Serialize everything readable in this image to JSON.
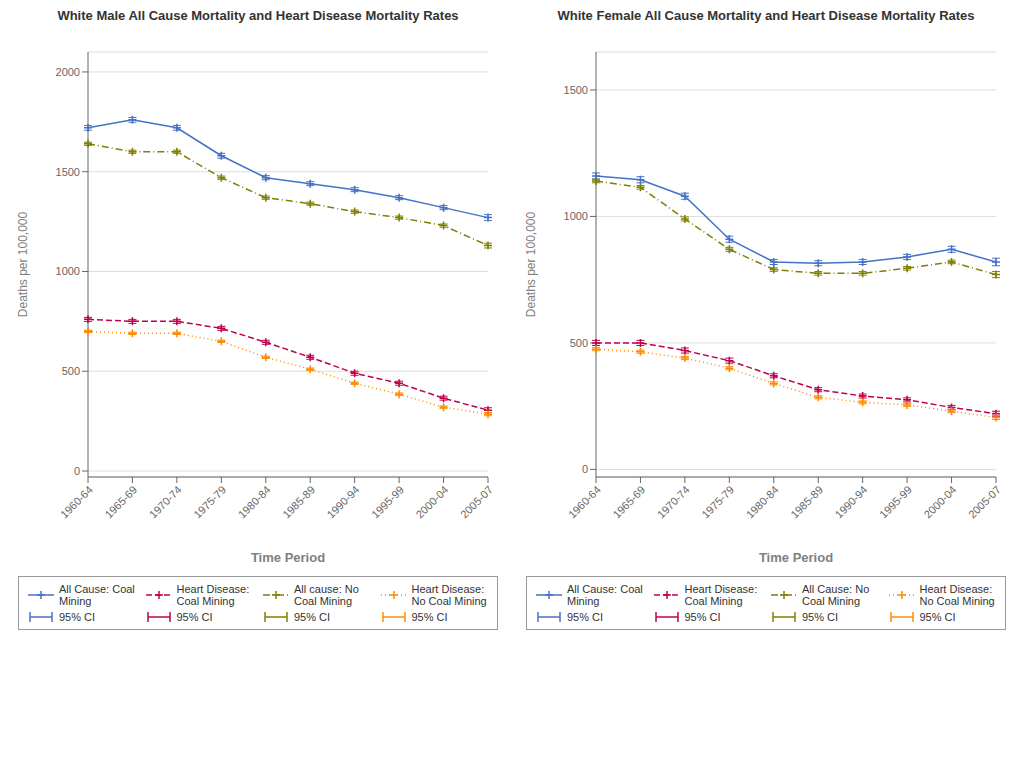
{
  "chart_data": [
    {
      "type": "line",
      "title": "White Male All Cause Mortality and Heart Disease Mortality Rates",
      "xlabel": "Time Period",
      "ylabel": "Deaths per 100,000",
      "categories": [
        "1960-64",
        "1965-69",
        "1970-74",
        "1975-79",
        "1980-84",
        "1985-89",
        "1990-94",
        "1995-99",
        "2000-04",
        "2005-07"
      ],
      "ylim": [
        -30,
        2100
      ],
      "yticks": [
        0,
        500,
        1000,
        1500,
        2000
      ],
      "grid": true,
      "legend": "bottom",
      "series": [
        {
          "name": "All Cause: Coal Mining",
          "color": "#4472c4",
          "line_style": "solid",
          "marker": "plus",
          "values": [
            1720,
            1760,
            1720,
            1580,
            1470,
            1440,
            1410,
            1370,
            1320,
            1270
          ],
          "errors": [
            12,
            12,
            12,
            12,
            10,
            10,
            10,
            10,
            10,
            15
          ],
          "error_label": "95% CI"
        },
        {
          "name": "Heart Disease: Coal Mining",
          "color": "#c0004e",
          "line_style": "dashed",
          "marker": "plus",
          "values": [
            760,
            750,
            750,
            715,
            645,
            570,
            490,
            440,
            365,
            305
          ],
          "errors": [
            10,
            10,
            10,
            10,
            10,
            10,
            10,
            10,
            10,
            12
          ],
          "error_label": "95% CI"
        },
        {
          "name": "All cause: No Coal Mining",
          "color": "#7f7f00",
          "line_style": "dashdot",
          "marker": "plus",
          "values": [
            1640,
            1600,
            1600,
            1470,
            1370,
            1340,
            1300,
            1270,
            1230,
            1130
          ],
          "errors": [
            8,
            8,
            8,
            8,
            8,
            8,
            8,
            8,
            8,
            12
          ],
          "error_label": "95% CI"
        },
        {
          "name": "Heart Disease: No Coal Mining",
          "color": "#ff8c00",
          "line_style": "dotted",
          "marker": "plus",
          "values": [
            700,
            690,
            690,
            650,
            570,
            510,
            440,
            385,
            320,
            285
          ],
          "errors": [
            6,
            6,
            6,
            6,
            6,
            6,
            6,
            6,
            6,
            8
          ],
          "error_label": "95% CI"
        }
      ]
    },
    {
      "type": "line",
      "title": "White Female All Cause Mortality and Heart Disease Mortality Rates",
      "xlabel": "Time Period",
      "ylabel": "Deaths per 100,000",
      "categories": [
        "1960-64",
        "1965-69",
        "1970-74",
        "1975-79",
        "1980-84",
        "1985-89",
        "1990-94",
        "1995-99",
        "2000-04",
        "2005-07"
      ],
      "ylim": [
        -30,
        1650
      ],
      "yticks": [
        0,
        500,
        1000,
        1500
      ],
      "grid": true,
      "legend": "bottom",
      "series": [
        {
          "name": "All Cause: Coal Mining",
          "color": "#4472c4",
          "line_style": "solid",
          "marker": "plus",
          "values": [
            1160,
            1145,
            1080,
            910,
            820,
            815,
            820,
            840,
            870,
            820
          ],
          "errors": [
            12,
            12,
            12,
            12,
            10,
            10,
            10,
            10,
            12,
            15
          ],
          "error_label": "95% CI"
        },
        {
          "name": "Heart Disease: Coal Mining",
          "color": "#c0004e",
          "line_style": "dashed",
          "marker": "plus",
          "values": [
            500,
            500,
            470,
            430,
            370,
            315,
            290,
            275,
            245,
            220
          ],
          "errors": [
            10,
            10,
            10,
            10,
            8,
            8,
            8,
            8,
            8,
            10
          ],
          "error_label": "95% CI"
        },
        {
          "name": "All Cause: No Coal Mining",
          "color": "#7f7f00",
          "line_style": "dashdot",
          "marker": "plus",
          "values": [
            1140,
            1115,
            990,
            870,
            790,
            775,
            775,
            795,
            820,
            770
          ],
          "errors": [
            7,
            7,
            8,
            8,
            7,
            7,
            7,
            7,
            7,
            12
          ],
          "error_label": "95% CI"
        },
        {
          "name": "Heart Disease: No Coal Mining",
          "color": "#ff8c00",
          "line_style": "dotted",
          "marker": "plus",
          "values": [
            475,
            465,
            440,
            400,
            340,
            285,
            265,
            255,
            230,
            205
          ],
          "errors": [
            6,
            6,
            6,
            6,
            6,
            6,
            6,
            6,
            6,
            8
          ],
          "error_label": "95% CI"
        }
      ]
    }
  ]
}
